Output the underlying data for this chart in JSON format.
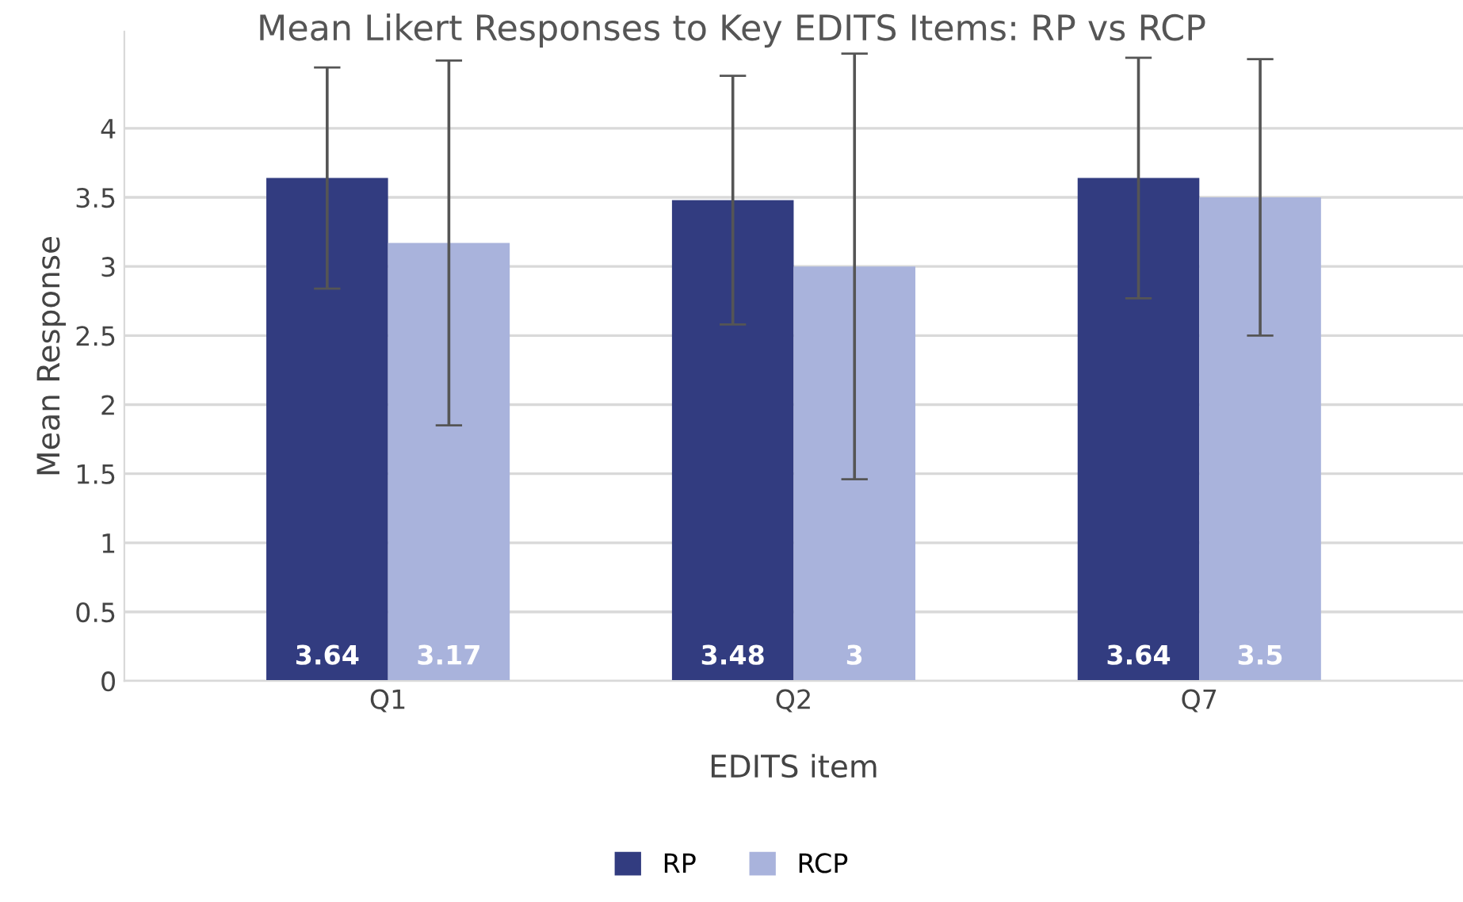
{
  "chart_data": {
    "type": "bar",
    "title": "Mean Likert Responses to Key EDITS Items: RP vs RCP",
    "xlabel": "EDITS item",
    "ylabel": "Mean Response",
    "categories": [
      "Q1",
      "Q2",
      "Q7"
    ],
    "series": [
      {
        "name": "RP",
        "color": "#323c80",
        "values": [
          3.64,
          3.48,
          3.64
        ],
        "errors": [
          0.8,
          0.9,
          0.87
        ]
      },
      {
        "name": "RCP",
        "color": "#a9b3dc",
        "values": [
          3.17,
          3,
          3.5
        ],
        "errors": [
          1.32,
          1.54,
          1.0
        ]
      }
    ],
    "ylim": [
      0,
      4.7
    ],
    "yticks": [
      0,
      0.5,
      1,
      1.5,
      2,
      2.5,
      3,
      3.5,
      4
    ],
    "grid": "y",
    "legend": "bottom",
    "data_labels": true
  }
}
